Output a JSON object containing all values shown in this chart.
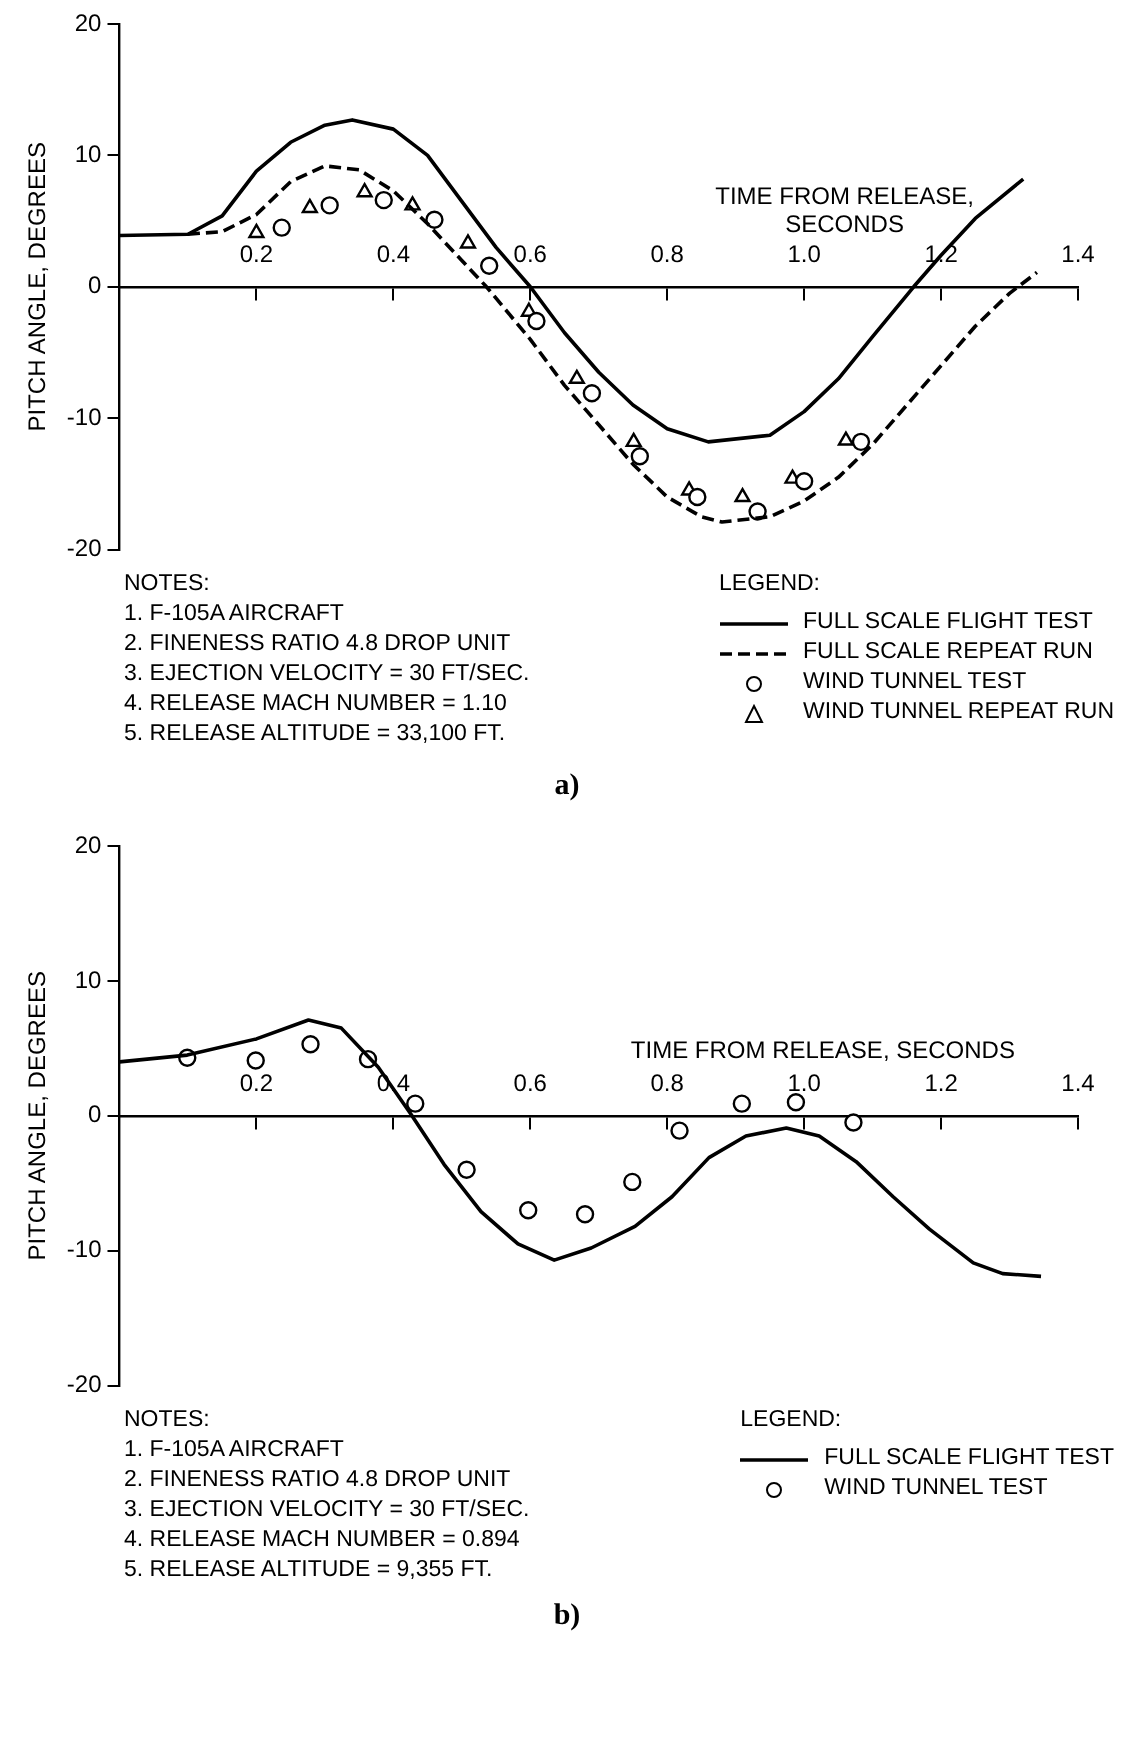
{
  "chart_data": [
    {
      "type": "line",
      "title": "a)",
      "xlabel": "TIME FROM RELEASE, SECONDS",
      "ylabel": "PITCH ANGLE, DEGREES",
      "xlim": [
        0,
        1.4
      ],
      "ylim": [
        -20,
        20
      ],
      "xticks": [
        0.2,
        0.4,
        0.6,
        0.8,
        {
          "value": 1,
          "label": "1.0"
        },
        1.2,
        1.4
      ],
      "yticks": [
        -20,
        -10,
        0,
        10,
        20
      ],
      "legend": "bottom right",
      "legend_title": "LEGEND:",
      "annotations": [
        "NOTES:",
        "1.  F-105A AIRCRAFT",
        "2.  FINENESS RATIO 4.8 DROP UNIT",
        "3.  EJECTION VELOCITY = 30 FT/SEC.",
        "4.  RELEASE MACH NUMBER = 1.10",
        "5.  RELEASE ALTITUDE = 33,100 FT."
      ],
      "series": [
        {
          "name": "FULL SCALE FLIGHT TEST",
          "color": "#000000",
          "marker": "none",
          "line_style": "solid",
          "x": [
            0,
            0.1,
            0.15,
            0.2,
            0.25,
            0.3,
            0.34,
            0.4,
            0.45,
            0.5,
            0.55,
            0.6,
            0.65,
            0.7,
            0.75,
            0.8,
            0.86,
            0.95,
            1.0,
            1.05,
            1.1,
            1.16,
            1.2,
            1.25,
            1.32
          ],
          "values": [
            3.9,
            4,
            5.4,
            8.8,
            11,
            12.3,
            12.7,
            12,
            10,
            6.5,
            3,
            0,
            -3.5,
            -6.5,
            -9,
            -10.8,
            -11.8,
            -11.3,
            -9.5,
            -7,
            -3.8,
            0,
            2.4,
            5.2,
            8.2
          ]
        },
        {
          "name": "FULL SCALE REPEAT RUN",
          "color": "#000000",
          "marker": "none",
          "line_style": "dashed",
          "x": [
            0.1,
            0.15,
            0.2,
            0.25,
            0.3,
            0.35,
            0.4,
            0.45,
            0.5,
            0.536,
            0.6,
            0.65,
            0.7,
            0.75,
            0.8,
            0.85,
            0.88,
            0.95,
            1.0,
            1.05,
            1.1,
            1.15,
            1.2,
            1.25,
            1.3,
            1.34
          ],
          "values": [
            4,
            4.2,
            5.5,
            8,
            9.2,
            8.9,
            7.3,
            4.8,
            2,
            0,
            -4,
            -7.5,
            -10.5,
            -13.5,
            -16,
            -17.5,
            -17.9,
            -17.5,
            -16.3,
            -14.5,
            -12,
            -9,
            -6,
            -3,
            -0.5,
            1.1
          ]
        },
        {
          "name": "WIND TUNNEL TEST",
          "type": "scatter",
          "color": "#000000",
          "marker": "circle",
          "x": [
            0.237,
            0.307,
            0.386,
            0.46,
            0.54,
            0.609,
            0.69,
            0.76,
            0.844,
            0.932,
            1.0,
            1.083
          ],
          "values": [
            4.5,
            6.2,
            6.6,
            5.1,
            1.6,
            -2.6,
            -8.1,
            -12.9,
            -16,
            -17.1,
            -14.8,
            -11.8
          ]
        },
        {
          "name": "WIND TUNNEL REPEAT RUN",
          "type": "scatter",
          "color": "#000000",
          "marker": "triangle",
          "x": [
            0.2,
            0.278,
            0.358,
            0.428,
            0.509,
            0.598,
            0.668,
            0.751,
            0.832,
            0.91,
            0.983,
            1.061
          ],
          "values": [
            4.1,
            6,
            7.2,
            6.2,
            3.3,
            -1.9,
            -7,
            -11.8,
            -15.5,
            -16,
            -14.6,
            -11.7
          ]
        }
      ]
    },
    {
      "type": "line",
      "title": "b)",
      "xlabel": "TIME FROM RELEASE, SECONDS",
      "ylabel": "PITCH ANGLE, DEGREES",
      "xlim": [
        0,
        1.4
      ],
      "ylim": [
        -20,
        20
      ],
      "xticks": [
        0.2,
        0.4,
        0.6,
        0.8,
        {
          "value": 1,
          "label": "1.0"
        },
        1.2,
        1.4
      ],
      "yticks": [
        -20,
        -10,
        0,
        10,
        20
      ],
      "legend": "bottom right",
      "legend_title": "LEGEND:",
      "annotations": [
        "NOTES:",
        "1.  F-105A AIRCRAFT",
        "2.  FINENESS RATIO 4.8 DROP UNIT",
        "3.  EJECTION VELOCITY = 30 FT/SEC.",
        "4.  RELEASE MACH NUMBER = 0.894",
        "5.  RELEASE ALTITUDE = 9,355 FT."
      ],
      "series": [
        {
          "name": "FULL SCALE FLIGHT TEST",
          "color": "#000000",
          "marker": "none",
          "line_style": "solid",
          "x": [
            0,
            0.099,
            0.2,
            0.276,
            0.324,
            0.378,
            0.426,
            0.474,
            0.528,
            0.582,
            0.635,
            0.689,
            0.753,
            0.807,
            0.861,
            0.915,
            0.974,
            1.022,
            1.076,
            1.13,
            1.183,
            1.247,
            1.29,
            1.346
          ],
          "values": [
            4,
            4.5,
            5.7,
            7.1,
            6.5,
            3.6,
            0.1,
            -3.6,
            -7.1,
            -9.5,
            -10.7,
            -9.8,
            -8.2,
            -6,
            -3.1,
            -1.5,
            -0.9,
            -1.5,
            -3.4,
            -6,
            -8.4,
            -10.9,
            -11.7,
            -11.9
          ]
        },
        {
          "name": "WIND TUNNEL TEST",
          "type": "scatter",
          "color": "#000000",
          "marker": "circle",
          "x": [
            0.099,
            0.199,
            0.279,
            0.363,
            0.432,
            0.507,
            0.597,
            0.68,
            0.749,
            0.818,
            0.909,
            0.988,
            1.072
          ],
          "values": [
            4.3,
            4.1,
            5.3,
            4.2,
            0.9,
            -4,
            -7,
            -7.3,
            -4.9,
            -1.1,
            0.9,
            1,
            -0.5
          ]
        }
      ]
    }
  ]
}
